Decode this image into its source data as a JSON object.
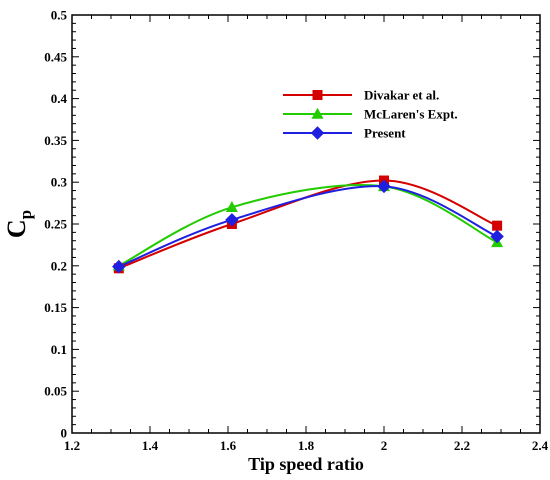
{
  "chart_data": {
    "type": "line",
    "xlabel": "Tip speed ratio",
    "ylabel_main": "C",
    "ylabel_sub": "p",
    "xlim": [
      1.2,
      2.4
    ],
    "ylim": [
      0,
      0.5
    ],
    "xticks": [
      "1.2",
      "1.4",
      "1.6",
      "1.8",
      "2",
      "2.2",
      "2.4"
    ],
    "yticks": [
      "0",
      "0.05",
      "0.1",
      "0.15",
      "0.2",
      "0.25",
      "0.3",
      "0.35",
      "0.4",
      "0.45",
      "0.5"
    ],
    "grid": false,
    "legend_position": "top-right",
    "series": [
      {
        "name": "Divakar et al.",
        "color": "#d40000",
        "marker": "square",
        "x": [
          1.32,
          1.61,
          2.0,
          2.29
        ],
        "y": [
          0.197,
          0.25,
          0.302,
          0.248
        ]
      },
      {
        "name": "McLaren's Expt.",
        "color": "#22cc00",
        "marker": "triangle",
        "x": [
          1.32,
          1.61,
          2.0,
          2.29
        ],
        "y": [
          0.2,
          0.27,
          0.295,
          0.228
        ]
      },
      {
        "name": "Present",
        "color": "#1f1fe0",
        "marker": "diamond",
        "x": [
          1.32,
          1.61,
          2.0,
          2.29
        ],
        "y": [
          0.199,
          0.255,
          0.295,
          0.235
        ]
      }
    ]
  }
}
